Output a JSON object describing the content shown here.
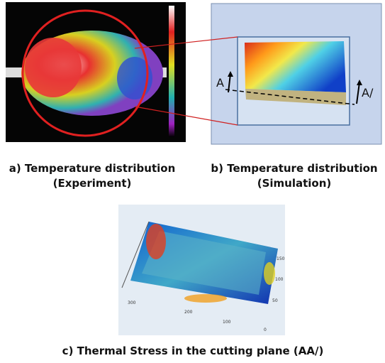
{
  "figure": {
    "panel_a": {
      "caption_line1": "a) Temperature distribution",
      "caption_line2": "(Experiment)"
    },
    "panel_b": {
      "caption_line1": "b) Temperature distribution",
      "caption_line2": "(Simulation)",
      "label_left": "A",
      "label_right": "A/"
    },
    "panel_c": {
      "caption": "c) Thermal Stress in the cutting plane (AA/)",
      "axis_labels_front": [
        "300",
        "200",
        "100"
      ],
      "axis_labels_side": [
        "150",
        "100",
        "50",
        "0"
      ]
    }
  }
}
